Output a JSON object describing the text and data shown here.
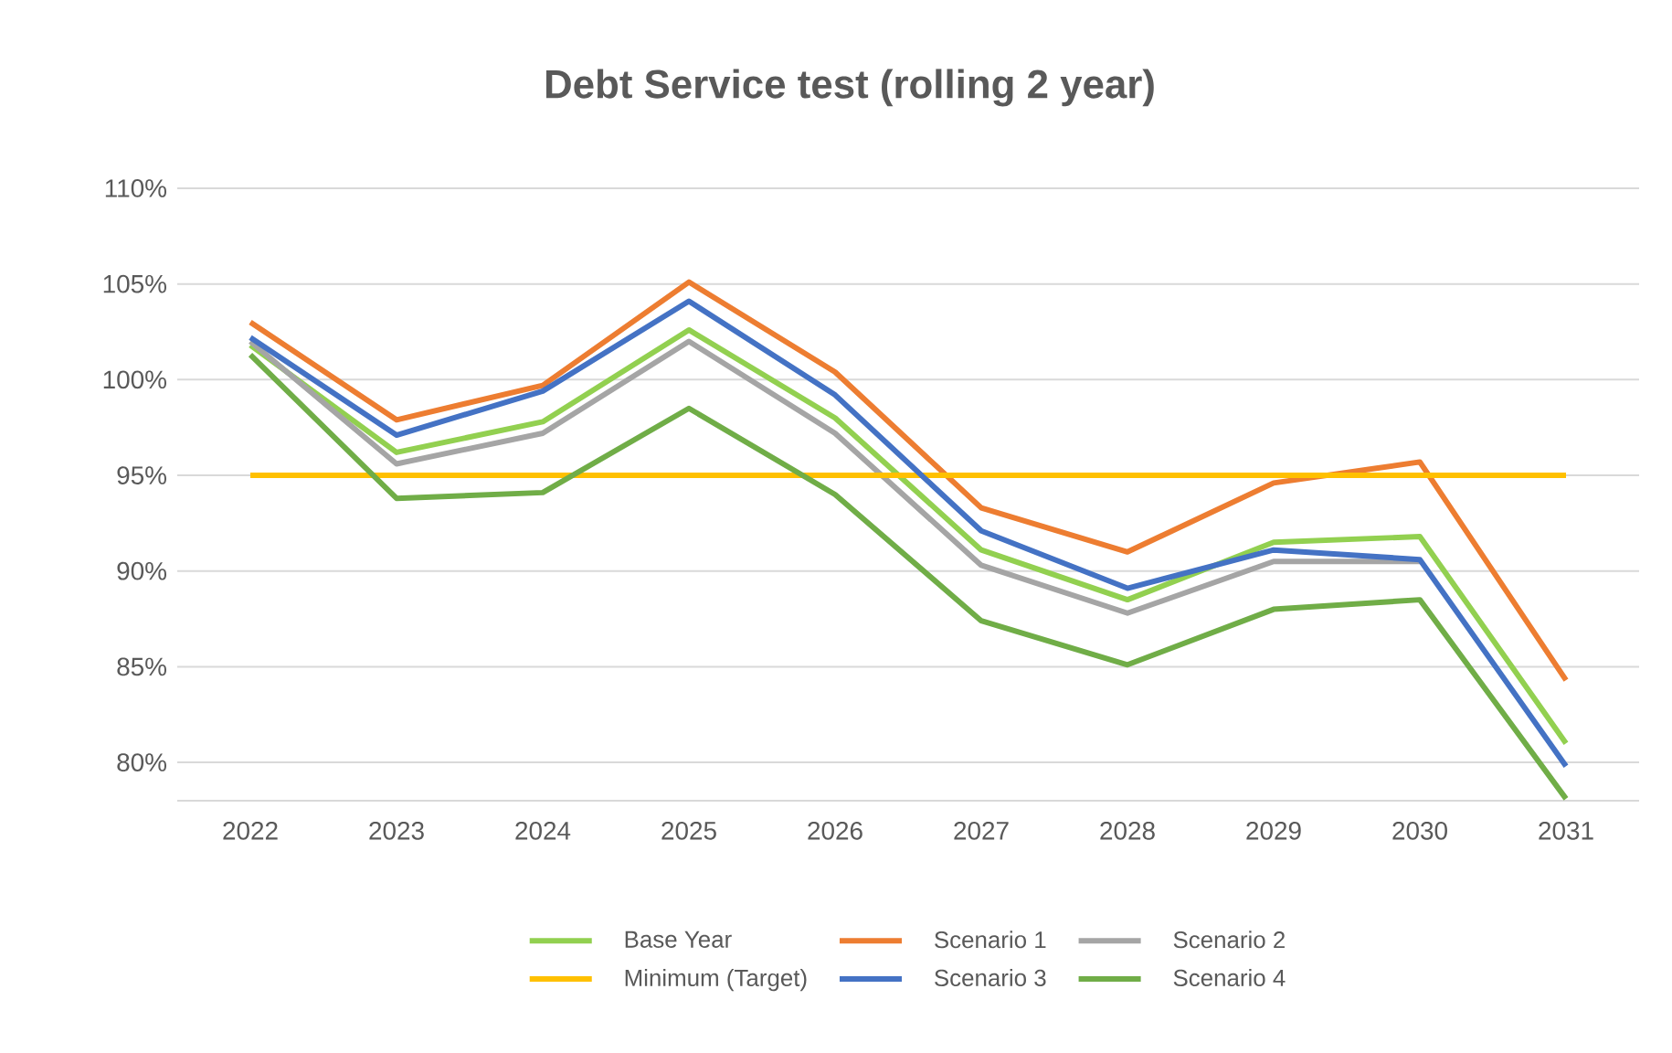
{
  "chart_data": {
    "type": "line",
    "title": "Debt Service test (rolling 2 year)",
    "categories": [
      "2022",
      "2023",
      "2024",
      "2025",
      "2026",
      "2027",
      "2028",
      "2029",
      "2030",
      "2031"
    ],
    "series": [
      {
        "name": "Base Year",
        "color": "#92d050",
        "values": [
          101.8,
          96.2,
          97.8,
          102.6,
          98.0,
          91.1,
          88.5,
          91.5,
          91.8,
          81.0
        ]
      },
      {
        "name": "Scenario 1",
        "color": "#ed7d31",
        "values": [
          103.0,
          97.9,
          99.7,
          105.1,
          100.4,
          93.3,
          91.0,
          94.6,
          95.7,
          84.3
        ]
      },
      {
        "name": "Scenario 2",
        "color": "#a5a5a5",
        "values": [
          102.0,
          95.6,
          97.2,
          102.0,
          97.2,
          90.3,
          87.8,
          90.5,
          90.5,
          null
        ]
      },
      {
        "name": "Minimum (Target)",
        "color": "#ffc000",
        "values": [
          95,
          95,
          95,
          95,
          95,
          95,
          95,
          95,
          95,
          95
        ]
      },
      {
        "name": "Scenario 3",
        "color": "#4472c4",
        "values": [
          102.2,
          97.1,
          99.4,
          104.1,
          99.2,
          92.1,
          89.1,
          91.1,
          90.6,
          79.8
        ]
      },
      {
        "name": "Scenario 4",
        "color": "#70ad47",
        "values": [
          101.3,
          93.8,
          94.1,
          98.5,
          94.0,
          87.4,
          85.1,
          88.0,
          88.5,
          78.1
        ]
      }
    ],
    "ylim": [
      78,
      110
    ],
    "yticks": [
      {
        "value": 80,
        "label": "80%"
      },
      {
        "value": 85,
        "label": "85%"
      },
      {
        "value": 90,
        "label": "90%"
      },
      {
        "value": 95,
        "label": "95%"
      },
      {
        "value": 100,
        "label": "100%"
      },
      {
        "value": 105,
        "label": "105%"
      },
      {
        "value": 110,
        "label": "110%"
      }
    ],
    "grid": "y",
    "legend": "bottom",
    "marker": "none",
    "line_style": "solid"
  }
}
